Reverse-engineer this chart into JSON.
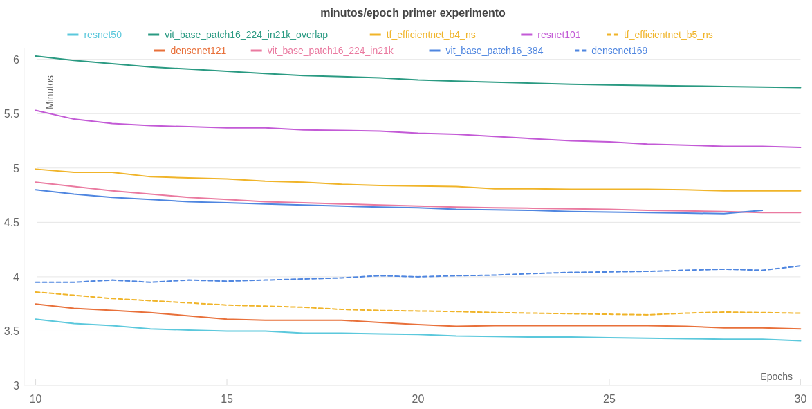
{
  "chart_data": {
    "type": "line",
    "title": "minutos/epoch primer experimento",
    "xlabel": "Epochs",
    "ylabel": "Minutos",
    "x": [
      10,
      11,
      12,
      13,
      14,
      15,
      16,
      17,
      18,
      19,
      20,
      21,
      22,
      23,
      24,
      25,
      26,
      27,
      28,
      29,
      30
    ],
    "xlim": [
      9.7,
      30.3
    ],
    "xticks": [
      10,
      15,
      20,
      25,
      30
    ],
    "ylim": [
      3,
      6.1
    ],
    "yticks": [
      3,
      3.5,
      4,
      4.5,
      5,
      5.5,
      6
    ],
    "grid": "y",
    "legend": "top",
    "series": [
      {
        "name": "resnet50",
        "color": "#5bc8dc",
        "line_style": "solid",
        "values": [
          3.61,
          3.57,
          3.55,
          3.52,
          3.51,
          3.5,
          3.5,
          3.48,
          3.48,
          3.475,
          3.47,
          3.455,
          3.45,
          3.445,
          3.445,
          3.44,
          3.435,
          3.43,
          3.425,
          3.425,
          3.41
        ]
      },
      {
        "name": "vit_base_patch16_224_in21k_overlap",
        "color": "#2a9a82",
        "line_style": "solid",
        "values": [
          6.03,
          5.99,
          5.96,
          5.93,
          5.91,
          5.89,
          5.87,
          5.85,
          5.84,
          5.83,
          5.81,
          5.8,
          5.79,
          5.78,
          5.77,
          5.765,
          5.76,
          5.755,
          5.75,
          5.745,
          5.74
        ]
      },
      {
        "name": "tf_efficientnet_b4_ns",
        "color": "#f0b429",
        "line_style": "solid",
        "values": [
          4.99,
          4.96,
          4.96,
          4.92,
          4.91,
          4.9,
          4.88,
          4.87,
          4.85,
          4.84,
          4.835,
          4.83,
          4.81,
          4.81,
          4.805,
          4.805,
          4.805,
          4.8,
          4.79,
          4.79,
          4.79
        ]
      },
      {
        "name": "resnet101",
        "color": "#c35ad6",
        "line_style": "solid",
        "values": [
          5.53,
          5.45,
          5.41,
          5.39,
          5.38,
          5.37,
          5.37,
          5.35,
          5.345,
          5.34,
          5.32,
          5.31,
          5.29,
          5.27,
          5.25,
          5.24,
          5.22,
          5.21,
          5.2,
          5.2,
          5.19
        ]
      },
      {
        "name": "tf_efficientnet_b5_ns",
        "color": "#f0b429",
        "line_style": "dashed",
        "values": [
          3.86,
          3.83,
          3.8,
          3.78,
          3.76,
          3.74,
          3.73,
          3.72,
          3.7,
          3.69,
          3.685,
          3.68,
          3.67,
          3.665,
          3.66,
          3.655,
          3.65,
          3.665,
          3.675,
          3.67,
          3.665
        ]
      },
      {
        "name": "densenet121",
        "color": "#e8703a",
        "line_style": "solid",
        "values": [
          3.75,
          3.71,
          3.69,
          3.67,
          3.64,
          3.61,
          3.6,
          3.6,
          3.6,
          3.58,
          3.56,
          3.545,
          3.55,
          3.55,
          3.55,
          3.55,
          3.55,
          3.545,
          3.53,
          3.53,
          3.52
        ]
      },
      {
        "name": "vit_base_patch16_224_in21k",
        "color": "#ea7aa0",
        "line_style": "solid",
        "values": [
          4.87,
          4.83,
          4.79,
          4.76,
          4.73,
          4.71,
          4.69,
          4.68,
          4.67,
          4.66,
          4.65,
          4.64,
          4.635,
          4.63,
          4.625,
          4.62,
          4.61,
          4.605,
          4.6,
          4.59,
          4.59
        ]
      },
      {
        "name": "vit_base_patch16_384",
        "color": "#4f86e0",
        "line_style": "solid",
        "values": [
          4.8,
          4.76,
          4.73,
          4.71,
          4.69,
          4.68,
          4.67,
          4.66,
          4.65,
          4.64,
          4.635,
          4.62,
          4.615,
          4.61,
          4.6,
          4.595,
          4.59,
          4.585,
          4.58,
          4.61,
          null
        ]
      },
      {
        "name": "densenet169",
        "color": "#4f86e0",
        "line_style": "dashed",
        "values": [
          3.95,
          3.95,
          3.97,
          3.95,
          3.97,
          3.96,
          3.97,
          3.98,
          3.99,
          4.01,
          4.0,
          4.01,
          4.015,
          4.03,
          4.04,
          4.045,
          4.05,
          4.06,
          4.07,
          4.06,
          4.1
        ]
      }
    ]
  }
}
